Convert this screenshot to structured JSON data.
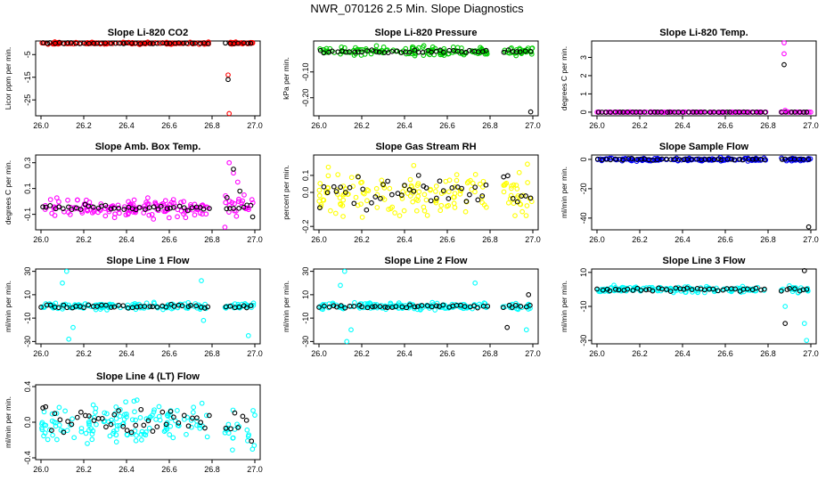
{
  "figure": {
    "title": "NWR_070126  2.5 Min. Slope Diagnostics",
    "x_tick_labels": [
      "26.0",
      "26.2",
      "26.4",
      "26.6",
      "26.8",
      "27.0"
    ],
    "colors": {
      "black": "#000000",
      "red": "#ff0000",
      "green": "#00cc00",
      "magenta": "#ff00ff",
      "yellow": "#ffff00",
      "blue": "#0000ff",
      "cyan": "#00ffff"
    }
  },
  "chart_data": [
    {
      "type": "scatter",
      "title": "Slope Li-820 CO2",
      "ylabel": "Licor ppm per min.",
      "xlim": [
        26.0,
        27.0
      ],
      "ylim": [
        -32,
        1
      ],
      "yticks": [
        -5,
        -15,
        -25
      ],
      "tick_labels": [
        "-5",
        "-15",
        "-25"
      ],
      "color": "red",
      "gap": [
        26.79,
        26.86
      ],
      "base": 0,
      "noise": 0.4,
      "black_noise": 0.2,
      "outliers": [
        {
          "x": 26.875,
          "y": -14,
          "c": "red"
        },
        {
          "x": 26.875,
          "y": -16,
          "c": "black"
        },
        {
          "x": 26.88,
          "y": -31,
          "c": "red"
        }
      ]
    },
    {
      "type": "scatter",
      "title": "Slope Li-820 Pressure",
      "ylabel": "kPa per min.",
      "xlim": [
        26.0,
        27.0
      ],
      "ylim": [
        -0.27,
        0.02
      ],
      "yticks": [
        -0.1,
        -0.2
      ],
      "tick_labels": [
        "-0.10",
        "-0.20"
      ],
      "color": "green",
      "gap": [
        26.79,
        26.86
      ],
      "base": -0.02,
      "noise": 0.015,
      "black_noise": 0.006,
      "outliers": [
        {
          "x": 26.99,
          "y": -0.255,
          "c": "black"
        }
      ]
    },
    {
      "type": "scatter",
      "title": "Slope Li-820 Temp.",
      "ylabel": "degrees C per min.",
      "xlim": [
        26.0,
        27.0
      ],
      "ylim": [
        -0.2,
        3.9
      ],
      "yticks": [
        0,
        1,
        2,
        3
      ],
      "tick_labels": [
        "0",
        "1",
        "2",
        "3"
      ],
      "color": "magenta",
      "gap": [
        26.79,
        26.86
      ],
      "base": 0,
      "noise": 0.01,
      "black_noise": 0.005,
      "outliers": [
        {
          "x": 26.875,
          "y": 3.8,
          "c": "magenta"
        },
        {
          "x": 26.875,
          "y": 3.2,
          "c": "magenta"
        },
        {
          "x": 26.875,
          "y": 2.6,
          "c": "black"
        },
        {
          "x": 26.88,
          "y": 0.1,
          "c": "magenta"
        }
      ]
    },
    {
      "type": "scatter",
      "title": "Slope Amb. Box Temp.",
      "ylabel": "degrees C per min.",
      "xlim": [
        26.0,
        27.0
      ],
      "ylim": [
        -0.22,
        0.36
      ],
      "yticks": [
        -0.1,
        0.1,
        0.3
      ],
      "tick_labels": [
        "-0.1",
        "0.1",
        "0.3"
      ],
      "color": "magenta",
      "gap": [
        26.79,
        26.86
      ],
      "base": -0.05,
      "noise": 0.06,
      "black_noise": 0.02,
      "outliers": [
        {
          "x": 26.88,
          "y": 0.3,
          "c": "magenta"
        },
        {
          "x": 26.9,
          "y": 0.22,
          "c": "magenta"
        },
        {
          "x": 26.92,
          "y": 0.15,
          "c": "magenta"
        },
        {
          "x": 26.95,
          "y": 0.05,
          "c": "magenta"
        },
        {
          "x": 26.97,
          "y": -0.05,
          "c": "magenta"
        },
        {
          "x": 26.99,
          "y": -0.12,
          "c": "black"
        },
        {
          "x": 26.87,
          "y": 0.03,
          "c": "black"
        },
        {
          "x": 26.9,
          "y": 0.25,
          "c": "black"
        },
        {
          "x": 26.93,
          "y": 0.08,
          "c": "black"
        },
        {
          "x": 26.86,
          "y": -0.2,
          "c": "magenta"
        }
      ]
    },
    {
      "type": "scatter",
      "title": "Slope Gas Stream RH",
      "ylabel": "percent per min.",
      "xlim": [
        26.0,
        27.0
      ],
      "ylim": [
        -0.22,
        0.22
      ],
      "yticks": [
        -0.2,
        0.0,
        0.1
      ],
      "tick_labels": [
        "-0.2",
        "0.0",
        "0.1"
      ],
      "color": "yellow",
      "gap": [
        26.79,
        26.86
      ],
      "base": 0.0,
      "noise": 0.12,
      "black_noise": 0.08,
      "outliers": []
    },
    {
      "type": "scatter",
      "title": "Slope Sample Flow",
      "ylabel": "ml/min per min.",
      "xlim": [
        26.0,
        27.0
      ],
      "ylim": [
        -48,
        3
      ],
      "yticks": [
        0,
        -20,
        -40
      ],
      "tick_labels": [
        "0",
        "-20",
        "-40"
      ],
      "color": "blue",
      "gap": [
        26.79,
        26.86
      ],
      "base": 0,
      "noise": 1.0,
      "black_noise": 0.4,
      "outliers": [
        {
          "x": 26.99,
          "y": -46,
          "c": "black"
        }
      ]
    },
    {
      "type": "scatter",
      "title": "Slope Line 1 Flow",
      "ylabel": "ml/min per min.",
      "xlim": [
        26.0,
        27.0
      ],
      "ylim": [
        -32,
        32
      ],
      "yticks": [
        -30,
        -10,
        10,
        30
      ],
      "tick_labels": [
        "-30",
        "-10",
        "10",
        "30"
      ],
      "color": "cyan",
      "gap": [
        26.79,
        26.86
      ],
      "base": 0,
      "noise": 2.5,
      "black_noise": 1.2,
      "outliers": [
        {
          "x": 26.12,
          "y": 30,
          "c": "cyan"
        },
        {
          "x": 26.1,
          "y": 20,
          "c": "cyan"
        },
        {
          "x": 26.13,
          "y": -28,
          "c": "cyan"
        },
        {
          "x": 26.15,
          "y": -18,
          "c": "cyan"
        },
        {
          "x": 26.75,
          "y": 22,
          "c": "cyan"
        },
        {
          "x": 26.76,
          "y": -12,
          "c": "cyan"
        },
        {
          "x": 26.97,
          "y": -25,
          "c": "cyan"
        }
      ]
    },
    {
      "type": "scatter",
      "title": "Slope Line 2 Flow",
      "ylabel": "ml/min per min.",
      "xlim": [
        26.0,
        27.0
      ],
      "ylim": [
        -32,
        32
      ],
      "yticks": [
        -30,
        -10,
        10,
        30
      ],
      "tick_labels": [
        "-30",
        "-10",
        "10",
        "30"
      ],
      "color": "cyan",
      "gap": [
        26.79,
        26.86
      ],
      "base": 0,
      "noise": 2.5,
      "black_noise": 1.2,
      "outliers": [
        {
          "x": 26.12,
          "y": 30,
          "c": "cyan"
        },
        {
          "x": 26.1,
          "y": 18,
          "c": "cyan"
        },
        {
          "x": 26.13,
          "y": -30,
          "c": "cyan"
        },
        {
          "x": 26.15,
          "y": -20,
          "c": "cyan"
        },
        {
          "x": 26.73,
          "y": 20,
          "c": "cyan"
        },
        {
          "x": 26.88,
          "y": -18,
          "c": "black"
        },
        {
          "x": 26.98,
          "y": 10,
          "c": "black"
        },
        {
          "x": 26.97,
          "y": -20,
          "c": "cyan"
        }
      ]
    },
    {
      "type": "scatter",
      "title": "Slope Line 3 Flow",
      "ylabel": "ml/min per min.",
      "xlim": [
        26.0,
        27.0
      ],
      "ylim": [
        -32,
        12
      ],
      "yticks": [
        -30,
        -10,
        10
      ],
      "tick_labels": [
        "-30",
        "-10",
        "10"
      ],
      "color": "cyan",
      "gap": [
        26.79,
        26.86
      ],
      "base": 0,
      "noise": 1.5,
      "black_noise": 0.8,
      "outliers": [
        {
          "x": 26.88,
          "y": -20,
          "c": "black"
        },
        {
          "x": 26.88,
          "y": -10,
          "c": "cyan"
        },
        {
          "x": 26.98,
          "y": -30,
          "c": "cyan"
        },
        {
          "x": 26.97,
          "y": 11,
          "c": "black"
        },
        {
          "x": 26.97,
          "y": -20,
          "c": "cyan"
        }
      ]
    },
    {
      "type": "scatter",
      "title": "Slope Line 4 (LT) Flow",
      "ylabel": "ml/min per min.",
      "xlim": [
        26.0,
        27.0
      ],
      "ylim": [
        -0.42,
        0.42
      ],
      "yticks": [
        -0.4,
        0.0,
        0.4
      ],
      "tick_labels": [
        "-0.4",
        "0.0",
        "0.4"
      ],
      "color": "cyan",
      "gap": [
        26.79,
        26.86
      ],
      "base": 0,
      "noise": 0.22,
      "black_noise": 0.16,
      "outliers": []
    }
  ]
}
